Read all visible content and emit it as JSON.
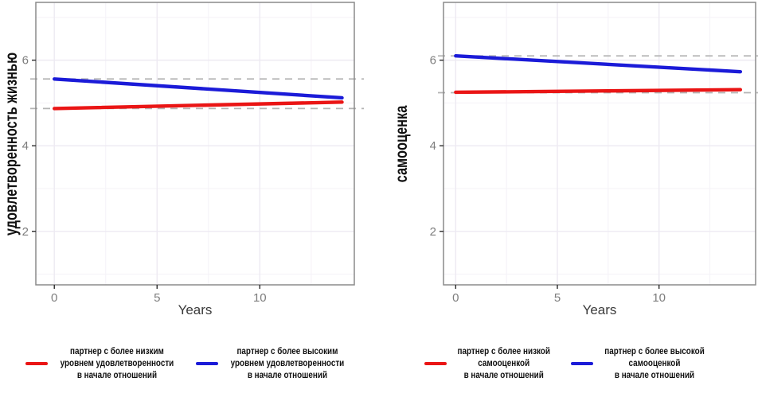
{
  "figure": {
    "background": "#ffffff",
    "panel_border_color": "#8a8a8a",
    "grid_major_color": "#edeaf2",
    "grid_minor_color": "#f5f3f8",
    "ref_dash_color": "#b4b4b4",
    "tick_color": "#2b2b2b",
    "tick_label_color": "#7d7d7d",
    "axis_title_color": "#3a3a3a"
  },
  "chart_data": [
    {
      "type": "line",
      "title": "",
      "xlabel": "Years",
      "ylabel": "удовлетворенность жизнью",
      "xlim": [
        -0.9,
        14.6
      ],
      "ylim": [
        0.75,
        7.35
      ],
      "x_ticks": [
        0,
        5,
        10
      ],
      "y_ticks": [
        2,
        4,
        6
      ],
      "x_minor_ticks": [
        2.5,
        7.5,
        12.5
      ],
      "y_minor_ticks": [
        1,
        3,
        5,
        7
      ],
      "grid": true,
      "legend_position": "bottom",
      "ref_line_style": "dashed gray at each group's starting level",
      "series": [
        {
          "name": "lower-initial-satisfaction-partner",
          "label": "партнер с более низким\nуровнем удовлетворенности\nв начале отношений",
          "color": "#ea1515",
          "x": [
            0,
            14
          ],
          "y": [
            4.87,
            5.02
          ],
          "baseline_ref": 4.87
        },
        {
          "name": "higher-initial-satisfaction-partner",
          "label": "партнер с более высоким\nуровнем удовлетворенности\nв начале отношений",
          "color": "#1b1bd8",
          "x": [
            0,
            14
          ],
          "y": [
            5.56,
            5.12
          ],
          "baseline_ref": 5.56
        }
      ]
    },
    {
      "type": "line",
      "title": "",
      "xlabel": "Years",
      "ylabel": "самооценка",
      "xlim": [
        -0.6,
        14.75
      ],
      "ylim": [
        0.75,
        7.35
      ],
      "x_ticks": [
        0,
        5,
        10
      ],
      "y_ticks": [
        2,
        4,
        6
      ],
      "x_minor_ticks": [
        2.5,
        7.5,
        12.5
      ],
      "y_minor_ticks": [
        1,
        3,
        5,
        7
      ],
      "grid": true,
      "legend_position": "bottom",
      "ref_line_style": "dashed gray at each group's starting level",
      "series": [
        {
          "name": "lower-initial-self-esteem-partner",
          "label": "партнер с более низкой\nсамооценкой\nв начале отношений",
          "color": "#ea1515",
          "x": [
            0,
            14
          ],
          "y": [
            5.25,
            5.31
          ],
          "baseline_ref": 5.24
        },
        {
          "name": "higher-initial-self-esteem-partner",
          "label": "партнер с более высокой\nсамооценкой\nв начале отношений",
          "color": "#1b1bd8",
          "x": [
            0,
            14
          ],
          "y": [
            6.1,
            5.73
          ],
          "baseline_ref": 6.1
        }
      ]
    }
  ]
}
